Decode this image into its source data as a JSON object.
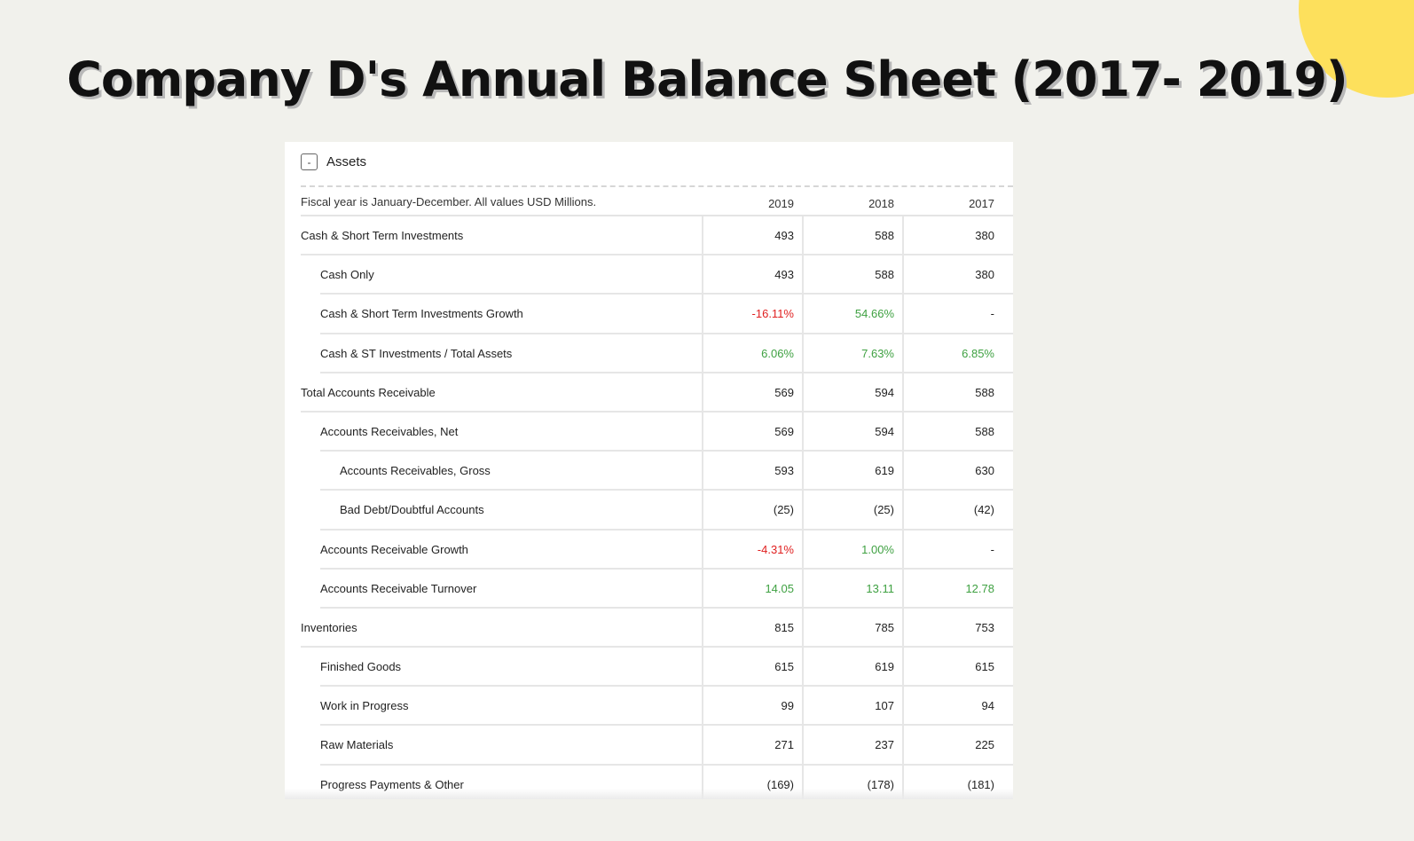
{
  "title": "Company D's Annual Balance Sheet (2017- 2019)",
  "panel": {
    "collapse_glyph": "-",
    "title": "Assets",
    "note": "Fiscal year is January-December. All values USD Millions.",
    "years": [
      "2019",
      "2018",
      "2017"
    ]
  },
  "rows": [
    {
      "label": "Cash & Short Term Investments",
      "indent": 0,
      "values": [
        "493",
        "588",
        "380"
      ],
      "colors": [
        "",
        "",
        ""
      ]
    },
    {
      "label": "Cash Only",
      "indent": 1,
      "values": [
        "493",
        "588",
        "380"
      ],
      "colors": [
        "",
        "",
        ""
      ]
    },
    {
      "label": "Cash & Short Term Investments Growth",
      "indent": 1,
      "values": [
        "-16.11%",
        "54.66%",
        "-"
      ],
      "colors": [
        "neg",
        "pos",
        ""
      ]
    },
    {
      "label": "Cash & ST Investments / Total Assets",
      "indent": 1,
      "values": [
        "6.06%",
        "7.63%",
        "6.85%"
      ],
      "colors": [
        "pos",
        "pos",
        "pos"
      ]
    },
    {
      "label": "Total Accounts Receivable",
      "indent": 0,
      "values": [
        "569",
        "594",
        "588"
      ],
      "colors": [
        "",
        "",
        ""
      ]
    },
    {
      "label": "Accounts Receivables, Net",
      "indent": 1,
      "values": [
        "569",
        "594",
        "588"
      ],
      "colors": [
        "",
        "",
        ""
      ]
    },
    {
      "label": "Accounts Receivables, Gross",
      "indent": 2,
      "values": [
        "593",
        "619",
        "630"
      ],
      "colors": [
        "",
        "",
        ""
      ]
    },
    {
      "label": "Bad Debt/Doubtful Accounts",
      "indent": 2,
      "values": [
        "(25)",
        "(25)",
        "(42)"
      ],
      "colors": [
        "",
        "",
        ""
      ]
    },
    {
      "label": "Accounts Receivable Growth",
      "indent": 1,
      "values": [
        "-4.31%",
        "1.00%",
        "-"
      ],
      "colors": [
        "neg",
        "pos",
        ""
      ]
    },
    {
      "label": "Accounts Receivable Turnover",
      "indent": 1,
      "values": [
        "14.05",
        "13.11",
        "12.78"
      ],
      "colors": [
        "pos",
        "pos",
        "pos"
      ]
    },
    {
      "label": "Inventories",
      "indent": 0,
      "values": [
        "815",
        "785",
        "753"
      ],
      "colors": [
        "",
        "",
        ""
      ]
    },
    {
      "label": "Finished Goods",
      "indent": 1,
      "values": [
        "615",
        "619",
        "615"
      ],
      "colors": [
        "",
        "",
        ""
      ]
    },
    {
      "label": "Work in Progress",
      "indent": 1,
      "values": [
        "99",
        "107",
        "94"
      ],
      "colors": [
        "",
        "",
        ""
      ]
    },
    {
      "label": "Raw Materials",
      "indent": 1,
      "values": [
        "271",
        "237",
        "225"
      ],
      "colors": [
        "",
        "",
        ""
      ]
    },
    {
      "label": "Progress Payments & Other",
      "indent": 1,
      "values": [
        "(169)",
        "(178)",
        "(181)"
      ],
      "colors": [
        "",
        "",
        ""
      ]
    }
  ],
  "colors": {
    "positive": "#3fa142",
    "negative": "#e02020",
    "accent_circle": "#fde05c",
    "background": "#f1f1ec"
  }
}
